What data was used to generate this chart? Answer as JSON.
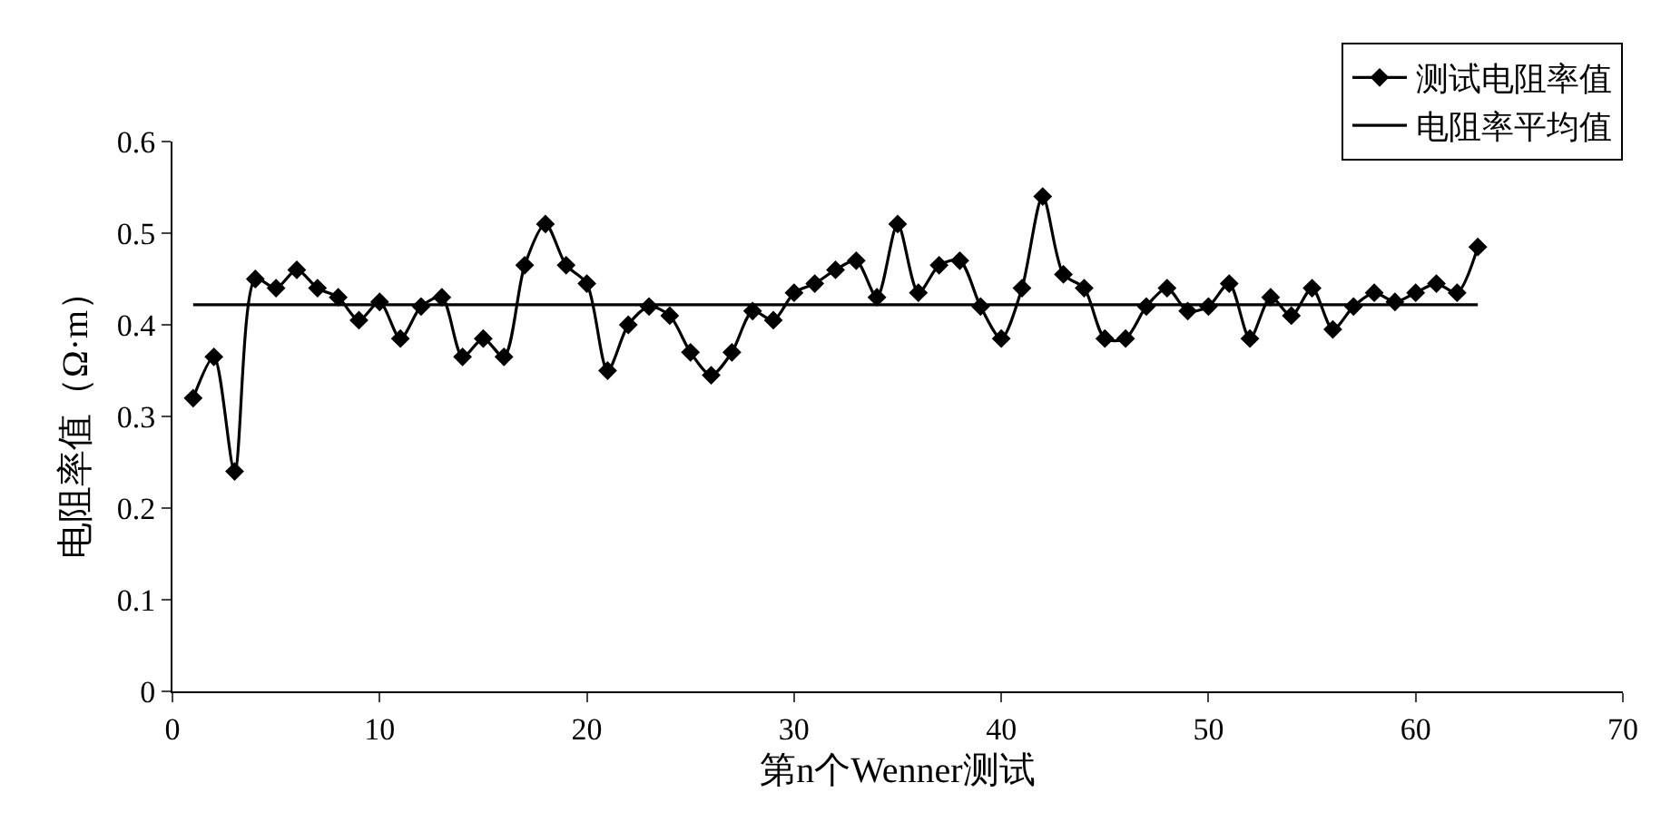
{
  "chart_data": {
    "type": "line",
    "xlabel": "第n个Wenner测试",
    "ylabel": "电阻率值（Ω·m）",
    "x": [
      1,
      2,
      3,
      4,
      5,
      6,
      7,
      8,
      9,
      10,
      11,
      12,
      13,
      14,
      15,
      16,
      17,
      18,
      19,
      20,
      21,
      22,
      23,
      24,
      25,
      26,
      27,
      28,
      29,
      30,
      31,
      32,
      33,
      34,
      35,
      36,
      37,
      38,
      39,
      40,
      41,
      42,
      43,
      44,
      45,
      46,
      47,
      48,
      49,
      50,
      51,
      52,
      53,
      54,
      55,
      56,
      57,
      58,
      59,
      60,
      61,
      62,
      63
    ],
    "series": [
      {
        "name": "测试电阻率值",
        "color": "#000000",
        "marker": "diamond",
        "values": [
          0.32,
          0.365,
          0.24,
          0.45,
          0.44,
          0.46,
          0.44,
          0.43,
          0.405,
          0.425,
          0.385,
          0.42,
          0.43,
          0.365,
          0.385,
          0.365,
          0.465,
          0.51,
          0.465,
          0.445,
          0.35,
          0.4,
          0.42,
          0.41,
          0.37,
          0.345,
          0.37,
          0.415,
          0.405,
          0.435,
          0.445,
          0.46,
          0.47,
          0.43,
          0.51,
          0.435,
          0.465,
          0.47,
          0.42,
          0.385,
          0.44,
          0.54,
          0.455,
          0.44,
          0.385,
          0.385,
          0.42,
          0.44,
          0.415,
          0.42,
          0.445,
          0.385,
          0.43,
          0.41,
          0.44,
          0.395,
          0.42,
          0.435,
          0.425,
          0.435,
          0.445,
          0.435,
          0.485
        ]
      },
      {
        "name": "电阻率平均值",
        "color": "#000000",
        "marker": "none",
        "x": [
          1,
          63
        ],
        "values": [
          0.422,
          0.422
        ]
      }
    ],
    "xlim": [
      0,
      70
    ],
    "xticks": [
      0,
      10,
      20,
      30,
      40,
      50,
      60,
      70
    ],
    "ylim": [
      0,
      0.6
    ],
    "yticks": [
      0,
      {
        "value": 0.1,
        "label": "0.1"
      },
      {
        "value": 0.2,
        "label": "0.2"
      },
      {
        "value": 0.3,
        "label": "0.3"
      },
      {
        "value": 0.4,
        "label": "0.4"
      },
      {
        "value": 0.5,
        "label": "0.5"
      },
      {
        "value": 0.6,
        "label": "0.6"
      }
    ],
    "grid": false,
    "legend": "top right",
    "line_style": "solid"
  }
}
